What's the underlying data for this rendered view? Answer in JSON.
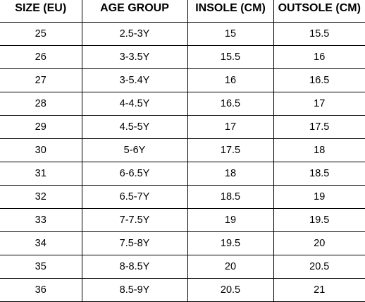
{
  "table": {
    "headers": [
      "SIZE (EU)",
      "AGE GROUP",
      "INSOLE (CM)",
      "OUTSOLE (CM)"
    ],
    "rows": [
      [
        "25",
        "2.5-3Y",
        "15",
        "15.5"
      ],
      [
        "26",
        "3-3.5Y",
        "15.5",
        "16"
      ],
      [
        "27",
        "3-5.4Y",
        "16",
        "16.5"
      ],
      [
        "28",
        "4-4.5Y",
        "16.5",
        "17"
      ],
      [
        "29",
        "4.5-5Y",
        "17",
        "17.5"
      ],
      [
        "30",
        "5-6Y",
        "17.5",
        "18"
      ],
      [
        "31",
        "6-6.5Y",
        "18",
        "18.5"
      ],
      [
        "32",
        "6.5-7Y",
        "18.5",
        "19"
      ],
      [
        "33",
        "7-7.5Y",
        "19",
        "19.5"
      ],
      [
        "34",
        "7.5-8Y",
        "19.5",
        "20"
      ],
      [
        "35",
        "8-8.5Y",
        "20",
        "20.5"
      ],
      [
        "36",
        "8.5-9Y",
        "20.5",
        "21"
      ]
    ]
  }
}
